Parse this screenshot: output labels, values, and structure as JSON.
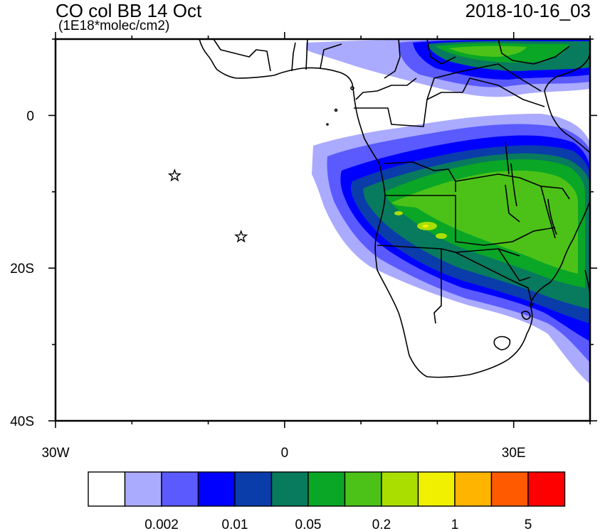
{
  "header": {
    "title_left": "CO col BB 14 Oct",
    "units": "(1E18*molec/cm2)",
    "title_right": "2018-10-16_03"
  },
  "map": {
    "lon_range": [
      -30,
      40
    ],
    "lat_range": [
      -40,
      10
    ],
    "lat_ticks": [
      {
        "value": 0,
        "label": "0"
      },
      {
        "value": -20,
        "label": "20S"
      },
      {
        "value": -40,
        "label": "40S"
      }
    ],
    "lon_ticks": [
      {
        "value": -30,
        "label": "30W"
      },
      {
        "value": 0,
        "label": "0"
      },
      {
        "value": 30,
        "label": "30E"
      }
    ],
    "markers": [
      {
        "name": "star-marker-ascension",
        "lon": -14.4,
        "lat": -7.9
      },
      {
        "name": "star-marker-st-helena",
        "lon": -5.7,
        "lat": -15.9
      }
    ]
  },
  "colorbar": {
    "colors": [
      "#ffffff",
      "#aaaaff",
      "#5a5aff",
      "#0000ff",
      "#0a3caa",
      "#087a5e",
      "#0aa626",
      "#4cc218",
      "#aade00",
      "#f0f000",
      "#ffb400",
      "#ff5a00",
      "#ff0000"
    ],
    "labels": [
      {
        "text": "0.002",
        "after_box": 2
      },
      {
        "text": "0.01",
        "after_box": 4
      },
      {
        "text": "0.05",
        "after_box": 6
      },
      {
        "text": "0.2",
        "after_box": 8
      },
      {
        "text": "1",
        "after_box": 10
      },
      {
        "text": "5",
        "after_box": 12
      }
    ]
  }
}
